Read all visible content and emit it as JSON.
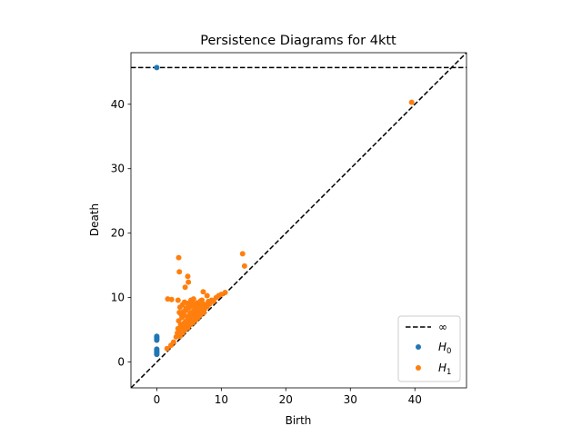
{
  "chart_data": {
    "type": "scatter",
    "title": "Persistence Diagrams for 4ktt",
    "xlabel": "Birth",
    "ylabel": "Death",
    "xlim": [
      -4,
      48
    ],
    "ylim": [
      -4,
      48
    ],
    "xticks": [
      0,
      10,
      20,
      30,
      40
    ],
    "yticks": [
      0,
      10,
      20,
      30,
      40
    ],
    "grid": false,
    "legend_position": "bottom-right",
    "infinity_level": 45.7,
    "lines": [
      {
        "name": "∞",
        "kind": "horizontal",
        "style": "dashed",
        "color": "#000000"
      },
      {
        "name": "",
        "kind": "diagonal",
        "style": "dashed",
        "color": "#000000"
      }
    ],
    "series": [
      {
        "name": "H_0",
        "color": "#1f77b4",
        "points": [
          [
            0,
            45.7
          ],
          [
            0,
            4.0
          ],
          [
            0,
            3.8
          ],
          [
            0,
            3.6
          ],
          [
            0,
            3.4
          ],
          [
            0,
            2.0
          ],
          [
            0,
            1.8
          ],
          [
            0,
            1.6
          ],
          [
            0,
            1.4
          ],
          [
            0,
            1.2
          ]
        ]
      },
      {
        "name": "H_1",
        "color": "#ff7f0e",
        "points": [
          [
            39.5,
            40.3
          ],
          [
            13.3,
            16.8
          ],
          [
            13.6,
            14.9
          ],
          [
            3.4,
            16.2
          ],
          [
            3.5,
            14.0
          ],
          [
            4.8,
            13.3
          ],
          [
            4.9,
            12.4
          ],
          [
            4.4,
            11.6
          ],
          [
            1.7,
            9.8
          ],
          [
            2.3,
            9.7
          ],
          [
            3.3,
            9.6
          ],
          [
            7.2,
            10.9
          ],
          [
            7.8,
            10.3
          ],
          [
            10.6,
            10.8
          ],
          [
            1.6,
            2.1
          ],
          [
            2.2,
            2.6
          ],
          [
            2.6,
            3.1
          ],
          [
            3.0,
            3.9
          ],
          [
            3.2,
            4.5
          ],
          [
            3.3,
            5.2
          ],
          [
            3.4,
            6.4
          ],
          [
            3.5,
            7.7
          ],
          [
            3.6,
            8.5
          ],
          [
            3.7,
            5.8
          ],
          [
            3.8,
            4.6
          ],
          [
            3.9,
            6.9
          ],
          [
            4.0,
            8.9
          ],
          [
            4.1,
            5.5
          ],
          [
            4.2,
            7.3
          ],
          [
            4.3,
            9.3
          ],
          [
            4.4,
            6.2
          ],
          [
            4.5,
            8.0
          ],
          [
            4.6,
            5.4
          ],
          [
            4.7,
            7.1
          ],
          [
            4.8,
            9.1
          ],
          [
            4.9,
            6.6
          ],
          [
            5.0,
            8.4
          ],
          [
            5.1,
            5.9
          ],
          [
            5.2,
            7.6
          ],
          [
            5.3,
            9.4
          ],
          [
            5.4,
            6.8
          ],
          [
            5.5,
            8.7
          ],
          [
            5.6,
            6.3
          ],
          [
            5.7,
            7.9
          ],
          [
            5.8,
            9.0
          ],
          [
            5.9,
            7.0
          ],
          [
            6.0,
            8.2
          ],
          [
            6.1,
            6.6
          ],
          [
            6.2,
            7.5
          ],
          [
            6.3,
            9.2
          ],
          [
            6.4,
            7.2
          ],
          [
            6.5,
            8.6
          ],
          [
            6.6,
            7.4
          ],
          [
            6.7,
            8.0
          ],
          [
            6.8,
            9.5
          ],
          [
            6.9,
            7.6
          ],
          [
            7.0,
            8.5
          ],
          [
            7.1,
            8.1
          ],
          [
            7.2,
            9.0
          ],
          [
            7.4,
            8.2
          ],
          [
            7.6,
            8.9
          ],
          [
            7.8,
            8.6
          ],
          [
            8.0,
            9.4
          ],
          [
            8.2,
            9.0
          ],
          [
            8.5,
            9.6
          ],
          [
            8.8,
            9.4
          ],
          [
            9.2,
            10.0
          ],
          [
            9.6,
            10.3
          ],
          [
            10.0,
            10.5
          ],
          [
            3.6,
            4.0
          ],
          [
            4.0,
            4.5
          ],
          [
            4.4,
            5.0
          ],
          [
            4.8,
            5.3
          ],
          [
            5.2,
            5.8
          ],
          [
            5.6,
            6.1
          ],
          [
            6.0,
            6.5
          ],
          [
            6.4,
            6.9
          ],
          [
            6.8,
            7.3
          ],
          [
            7.3,
            7.7
          ],
          [
            4.2,
            6.0
          ],
          [
            4.6,
            6.4
          ],
          [
            5.0,
            6.9
          ],
          [
            5.4,
            7.2
          ],
          [
            5.8,
            7.7
          ],
          [
            4.1,
            7.8
          ],
          [
            4.5,
            8.3
          ],
          [
            4.9,
            8.8
          ],
          [
            5.3,
            9.6
          ],
          [
            5.7,
            9.8
          ],
          [
            3.9,
            5.1
          ],
          [
            4.3,
            5.6
          ],
          [
            4.7,
            6.0
          ],
          [
            5.1,
            6.5
          ],
          [
            5.5,
            7.0
          ],
          [
            6.2,
            8.9
          ],
          [
            6.6,
            9.1
          ],
          [
            7.0,
            9.6
          ],
          [
            3.5,
            4.4
          ],
          [
            3.8,
            7.4
          ]
        ]
      }
    ]
  }
}
